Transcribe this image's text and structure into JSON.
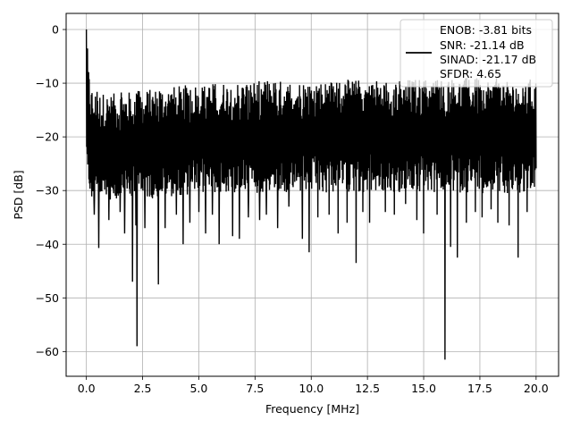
{
  "chart_data": {
    "type": "line",
    "title": "",
    "xlabel": "Frequency [MHz]",
    "ylabel": "PSD [dB]",
    "xlim": [
      -0.9,
      21.0
    ],
    "ylim": [
      -64.6,
      3.0
    ],
    "x_ticks": [
      0.0,
      2.5,
      5.0,
      7.5,
      10.0,
      12.5,
      15.0,
      17.5,
      20.0
    ],
    "x_tick_labels": [
      "0.0",
      "2.5",
      "5.0",
      "7.5",
      "10.0",
      "12.5",
      "15.0",
      "17.5",
      "20.0"
    ],
    "y_ticks": [
      0,
      -10,
      -20,
      -30,
      -40,
      -50,
      -60
    ],
    "y_tick_labels": [
      "0",
      "−10",
      "−20",
      "−30",
      "−40",
      "−50",
      "−60"
    ],
    "grid": true,
    "legend_position": "top-right",
    "series": [
      {
        "color": "#000000",
        "x_range": [
          0.0,
          20.0
        ],
        "envelope": {
          "x": [
            0.0,
            0.1,
            0.2,
            0.5,
            1.0,
            2.0,
            3.0,
            4.0,
            6.0,
            8.0,
            10.0,
            12.0,
            14.0,
            16.0,
            18.0,
            20.0
          ],
          "upper": [
            0.0,
            -7.0,
            -10.5,
            -11.5,
            -12.0,
            -11.5,
            -11.0,
            -10.5,
            -9.8,
            -9.5,
            -9.5,
            -9.3,
            -9.2,
            -9.0,
            -9.0,
            -9.2
          ],
          "lower": [
            -24.0,
            -30.0,
            -32.0,
            -32.5,
            -32.0,
            -31.8,
            -31.5,
            -31.0,
            -30.5,
            -30.5,
            -30.5,
            -30.5,
            -30.5,
            -30.5,
            -30.5,
            -30.5
          ]
        },
        "spikes": [
          {
            "x": 0.35,
            "y": -34.5
          },
          {
            "x": 0.55,
            "y": -33.0
          },
          {
            "x": 0.55,
            "y": -38.5
          },
          {
            "x": 0.55,
            "y": -40.7
          },
          {
            "x": 1.0,
            "y": -35.5
          },
          {
            "x": 1.5,
            "y": -34.0
          },
          {
            "x": 1.7,
            "y": -38.0
          },
          {
            "x": 2.05,
            "y": -47.0
          },
          {
            "x": 2.2,
            "y": -36.5
          },
          {
            "x": 2.25,
            "y": -59.0
          },
          {
            "x": 2.6,
            "y": -37.0
          },
          {
            "x": 3.2,
            "y": -47.5
          },
          {
            "x": 3.5,
            "y": -37.0
          },
          {
            "x": 4.0,
            "y": -34.5
          },
          {
            "x": 4.3,
            "y": -40.0
          },
          {
            "x": 4.6,
            "y": -36.0
          },
          {
            "x": 5.0,
            "y": -34.0
          },
          {
            "x": 5.3,
            "y": -38.0
          },
          {
            "x": 5.6,
            "y": -34.5
          },
          {
            "x": 5.9,
            "y": -40.0
          },
          {
            "x": 6.5,
            "y": -38.5
          },
          {
            "x": 6.8,
            "y": -39.0
          },
          {
            "x": 7.2,
            "y": -35.0
          },
          {
            "x": 7.7,
            "y": -35.5
          },
          {
            "x": 8.0,
            "y": -34.5
          },
          {
            "x": 8.5,
            "y": -37.0
          },
          {
            "x": 9.0,
            "y": -33.0
          },
          {
            "x": 9.6,
            "y": -39.0
          },
          {
            "x": 9.9,
            "y": -41.5
          },
          {
            "x": 10.3,
            "y": -35.0
          },
          {
            "x": 10.8,
            "y": -34.5
          },
          {
            "x": 11.2,
            "y": -38.0
          },
          {
            "x": 11.6,
            "y": -36.0
          },
          {
            "x": 12.0,
            "y": -43.5
          },
          {
            "x": 12.3,
            "y": -34.0
          },
          {
            "x": 12.6,
            "y": -36.0
          },
          {
            "x": 13.3,
            "y": -34.0
          },
          {
            "x": 13.7,
            "y": -34.5
          },
          {
            "x": 14.2,
            "y": -32.5
          },
          {
            "x": 14.7,
            "y": -35.5
          },
          {
            "x": 15.0,
            "y": -38.0
          },
          {
            "x": 15.6,
            "y": -34.5
          },
          {
            "x": 15.95,
            "y": -61.5
          },
          {
            "x": 16.2,
            "y": -40.5
          },
          {
            "x": 16.5,
            "y": -42.5
          },
          {
            "x": 16.9,
            "y": -36.0
          },
          {
            "x": 17.3,
            "y": -34.0
          },
          {
            "x": 17.6,
            "y": -35.0
          },
          {
            "x": 18.0,
            "y": -33.5
          },
          {
            "x": 18.3,
            "y": -36.0
          },
          {
            "x": 18.8,
            "y": -36.5
          },
          {
            "x": 19.2,
            "y": -42.5
          },
          {
            "x": 19.6,
            "y": -34.0
          }
        ]
      }
    ],
    "legend": {
      "lines": [
        "ENOB: -3.81 bits",
        "SNR: -21.14 dB",
        "SINAD: -21.17 dB",
        "SFDR: 4.65"
      ]
    }
  }
}
